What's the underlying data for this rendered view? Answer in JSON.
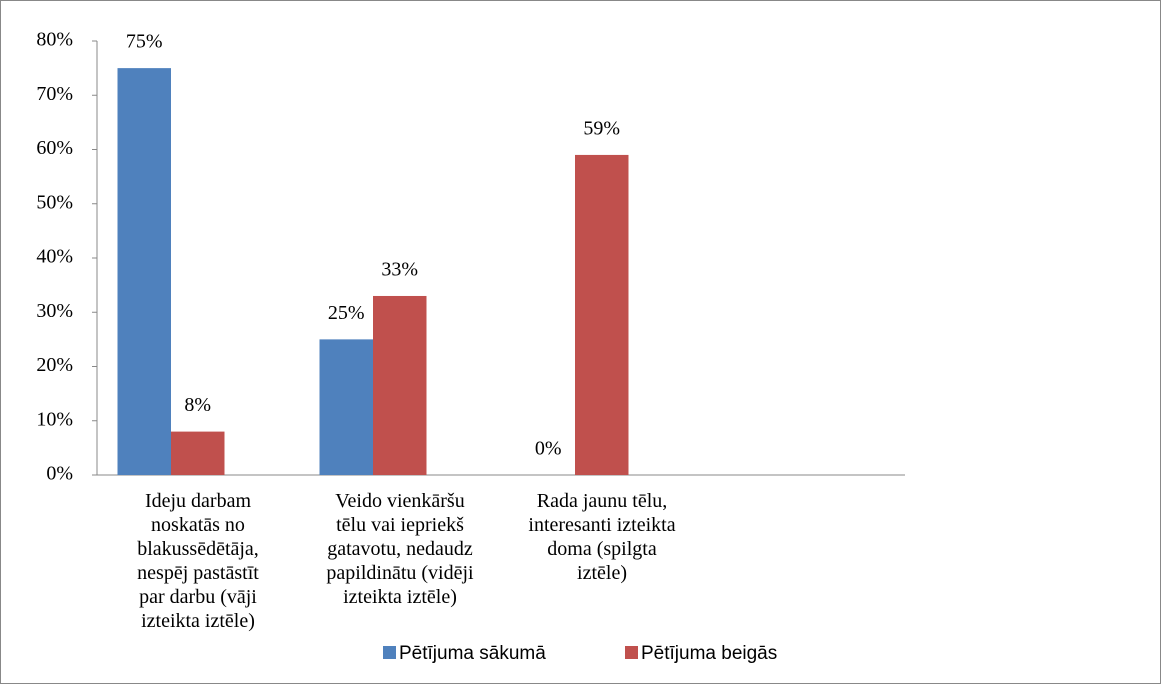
{
  "chart_data": {
    "type": "bar",
    "categories": [
      "Ideju darbam\nnoskatās no\nblakussēdētāja,\nnespēj pastāstīt\npar darbu (vāji\nizteikta iztēle)",
      "Veido vienkāršu\ntēlu vai iepriekš\ngatavotu, nedaudz\npapildinātu (vidēji\nizteikta iztēle)",
      "Rada jaunu tēlu,\ninteresanti izteikta\ndoma (spilgta\niztēle)",
      null
    ],
    "series": [
      {
        "name": "Pētījuma sākumā",
        "color": "#4f81bd",
        "values": [
          75,
          25,
          0,
          null
        ],
        "value_labels": [
          "75%",
          "25%",
          "0%",
          null
        ]
      },
      {
        "name": "Pētījuma beigās",
        "color": "#c0504d",
        "values": [
          8,
          33,
          59,
          null
        ],
        "value_labels": [
          "8%",
          "33%",
          "59%",
          null
        ]
      }
    ],
    "ylim": [
      0,
      80
    ],
    "yticks": [
      {
        "value": 0,
        "label": "0%"
      },
      {
        "value": 10,
        "label": "10%"
      },
      {
        "value": 20,
        "label": "20%"
      },
      {
        "value": 30,
        "label": "30%"
      },
      {
        "value": 40,
        "label": "40%"
      },
      {
        "value": 50,
        "label": "50%"
      },
      {
        "value": 60,
        "label": "60%"
      },
      {
        "value": 70,
        "label": "70%"
      },
      {
        "value": 80,
        "label": "80%"
      }
    ],
    "grid": false,
    "legend": "bottom"
  }
}
